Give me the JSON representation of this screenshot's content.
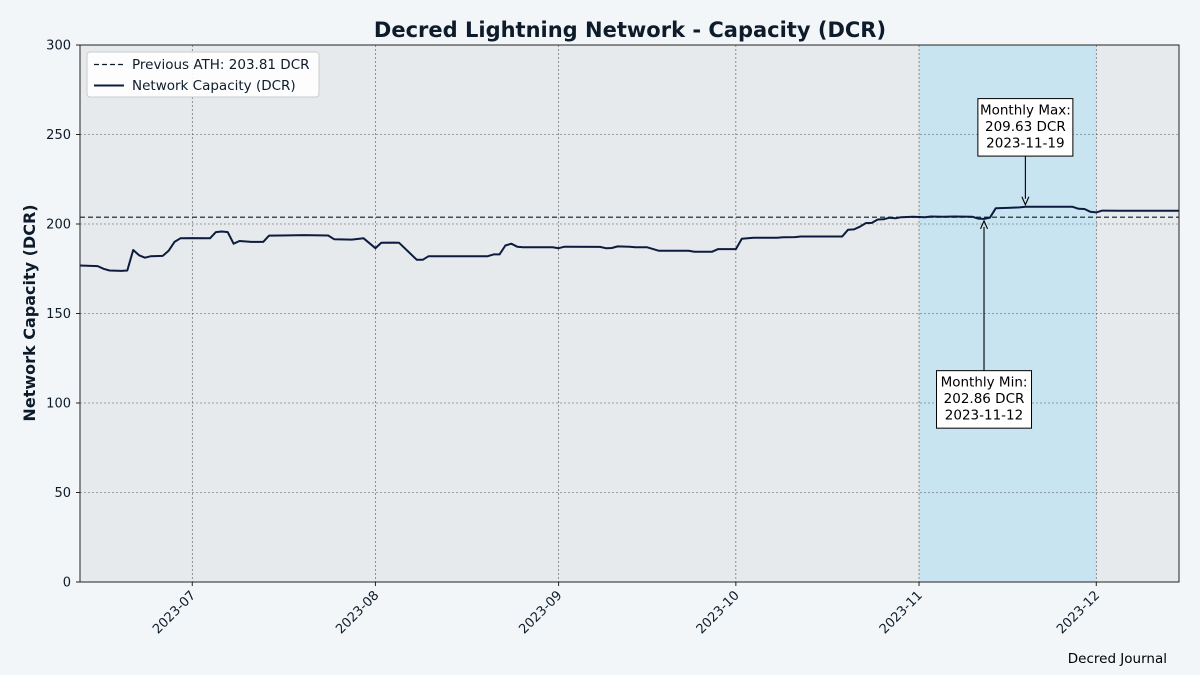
{
  "chart_data": {
    "type": "line",
    "title": "Decred Lightning Network - Capacity (DCR)",
    "ylabel": "Network Capacity (DCR)",
    "xlabel": "",
    "xlim": [
      "2023-06-12",
      "2023-12-15"
    ],
    "ylim": [
      0,
      300
    ],
    "x_ticks": [
      "2023-07",
      "2023-08",
      "2023-09",
      "2023-10",
      "2023-11",
      "2023-12"
    ],
    "x_tick_dates": [
      "2023-07-01",
      "2023-08-01",
      "2023-09-01",
      "2023-10-01",
      "2023-11-01",
      "2023-12-01"
    ],
    "y_ticks": [
      0,
      50,
      100,
      150,
      200,
      250,
      300
    ],
    "grid": true,
    "legend_position": "top-left",
    "highlight_range": [
      "2023-11-01",
      "2023-12-01"
    ],
    "highlight_color": "#c8e4f0",
    "reference_line": {
      "name": "Previous ATH: 203.81 DCR",
      "value": 203.81,
      "style": "dashed"
    },
    "series": [
      {
        "name": "Network Capacity (DCR)",
        "color": "#0d1b3e",
        "points": [
          [
            "2023-06-12",
            176.8
          ],
          [
            "2023-06-15",
            176.5
          ],
          [
            "2023-06-16",
            175.0
          ],
          [
            "2023-06-17",
            174.0
          ],
          [
            "2023-06-19",
            173.8
          ],
          [
            "2023-06-20",
            174.0
          ],
          [
            "2023-06-21",
            185.5
          ],
          [
            "2023-06-22",
            182.5
          ],
          [
            "2023-06-23",
            181.2
          ],
          [
            "2023-06-24",
            182.0
          ],
          [
            "2023-06-26",
            182.2
          ],
          [
            "2023-06-27",
            185.0
          ],
          [
            "2023-06-28",
            190.0
          ],
          [
            "2023-06-29",
            192.0
          ],
          [
            "2023-07-01",
            192.1
          ],
          [
            "2023-07-04",
            192.0
          ],
          [
            "2023-07-05",
            195.5
          ],
          [
            "2023-07-06",
            195.8
          ],
          [
            "2023-07-07",
            195.5
          ],
          [
            "2023-07-08",
            189.0
          ],
          [
            "2023-07-09",
            190.5
          ],
          [
            "2023-07-11",
            190.0
          ],
          [
            "2023-07-13",
            190.0
          ],
          [
            "2023-07-14",
            193.5
          ],
          [
            "2023-07-16",
            193.6
          ],
          [
            "2023-07-20",
            193.8
          ],
          [
            "2023-07-24",
            193.6
          ],
          [
            "2023-07-25",
            191.5
          ],
          [
            "2023-07-28",
            191.3
          ],
          [
            "2023-07-30",
            192.0
          ],
          [
            "2023-08-01",
            186.5
          ],
          [
            "2023-08-02",
            189.5
          ],
          [
            "2023-08-04",
            189.6
          ],
          [
            "2023-08-05",
            189.5
          ],
          [
            "2023-08-08",
            180.0
          ],
          [
            "2023-08-09",
            180.0
          ],
          [
            "2023-08-10",
            182.0
          ],
          [
            "2023-08-20",
            182.0
          ],
          [
            "2023-08-21",
            183.0
          ],
          [
            "2023-08-22",
            183.0
          ],
          [
            "2023-08-23",
            188.0
          ],
          [
            "2023-08-24",
            189.0
          ],
          [
            "2023-08-25",
            187.3
          ],
          [
            "2023-08-26",
            187.0
          ],
          [
            "2023-08-31",
            187.0
          ],
          [
            "2023-09-01",
            186.5
          ],
          [
            "2023-09-02",
            187.3
          ],
          [
            "2023-09-08",
            187.2
          ],
          [
            "2023-09-09",
            186.5
          ],
          [
            "2023-09-10",
            186.6
          ],
          [
            "2023-09-11",
            187.5
          ],
          [
            "2023-09-13",
            187.3
          ],
          [
            "2023-09-14",
            187.0
          ],
          [
            "2023-09-16",
            187.0
          ],
          [
            "2023-09-18",
            185.0
          ],
          [
            "2023-09-23",
            185.0
          ],
          [
            "2023-09-24",
            184.5
          ],
          [
            "2023-09-27",
            184.5
          ],
          [
            "2023-09-28",
            186.0
          ],
          [
            "2023-10-01",
            186.0
          ],
          [
            "2023-10-02",
            191.8
          ],
          [
            "2023-10-04",
            192.3
          ],
          [
            "2023-10-08",
            192.3
          ],
          [
            "2023-10-09",
            192.6
          ],
          [
            "2023-10-11",
            192.7
          ],
          [
            "2023-10-12",
            193.0
          ],
          [
            "2023-10-19",
            193.0
          ],
          [
            "2023-10-20",
            196.8
          ],
          [
            "2023-10-21",
            197.0
          ],
          [
            "2023-10-22",
            198.5
          ],
          [
            "2023-10-23",
            200.5
          ],
          [
            "2023-10-24",
            200.6
          ],
          [
            "2023-10-25",
            202.5
          ],
          [
            "2023-10-26",
            202.6
          ],
          [
            "2023-10-27",
            203.5
          ],
          [
            "2023-10-28",
            203.2
          ],
          [
            "2023-10-29",
            203.8
          ],
          [
            "2023-10-31",
            204.0
          ],
          [
            "2023-11-02",
            203.8
          ],
          [
            "2023-11-03",
            204.2
          ],
          [
            "2023-11-05",
            204.1
          ],
          [
            "2023-11-07",
            204.2
          ],
          [
            "2023-11-10",
            204.1
          ],
          [
            "2023-11-11",
            203.0
          ],
          [
            "2023-11-12",
            202.86
          ],
          [
            "2023-11-13",
            203.5
          ],
          [
            "2023-11-14",
            208.8
          ],
          [
            "2023-11-16",
            209.0
          ],
          [
            "2023-11-18",
            209.3
          ],
          [
            "2023-11-19",
            209.63
          ],
          [
            "2023-11-27",
            209.6
          ],
          [
            "2023-11-28",
            208.5
          ],
          [
            "2023-11-29",
            208.4
          ],
          [
            "2023-11-30",
            206.8
          ],
          [
            "2023-12-01",
            206.5
          ],
          [
            "2023-12-02",
            207.5
          ],
          [
            "2023-12-05",
            207.4
          ],
          [
            "2023-12-15",
            207.4
          ]
        ]
      }
    ],
    "annotations": [
      {
        "id": "max",
        "lines": [
          "Monthly Max:",
          "209.63 DCR",
          "2023-11-19"
        ],
        "point": [
          "2023-11-19",
          209.63
        ],
        "text_at": [
          "2023-11-19",
          254
        ]
      },
      {
        "id": "min",
        "lines": [
          "Monthly Min:",
          "202.86 DCR",
          "2023-11-12"
        ],
        "point": [
          "2023-11-12",
          202.86
        ],
        "text_at": [
          "2023-11-12",
          102
        ]
      }
    ],
    "credit": "Decred Journal"
  }
}
